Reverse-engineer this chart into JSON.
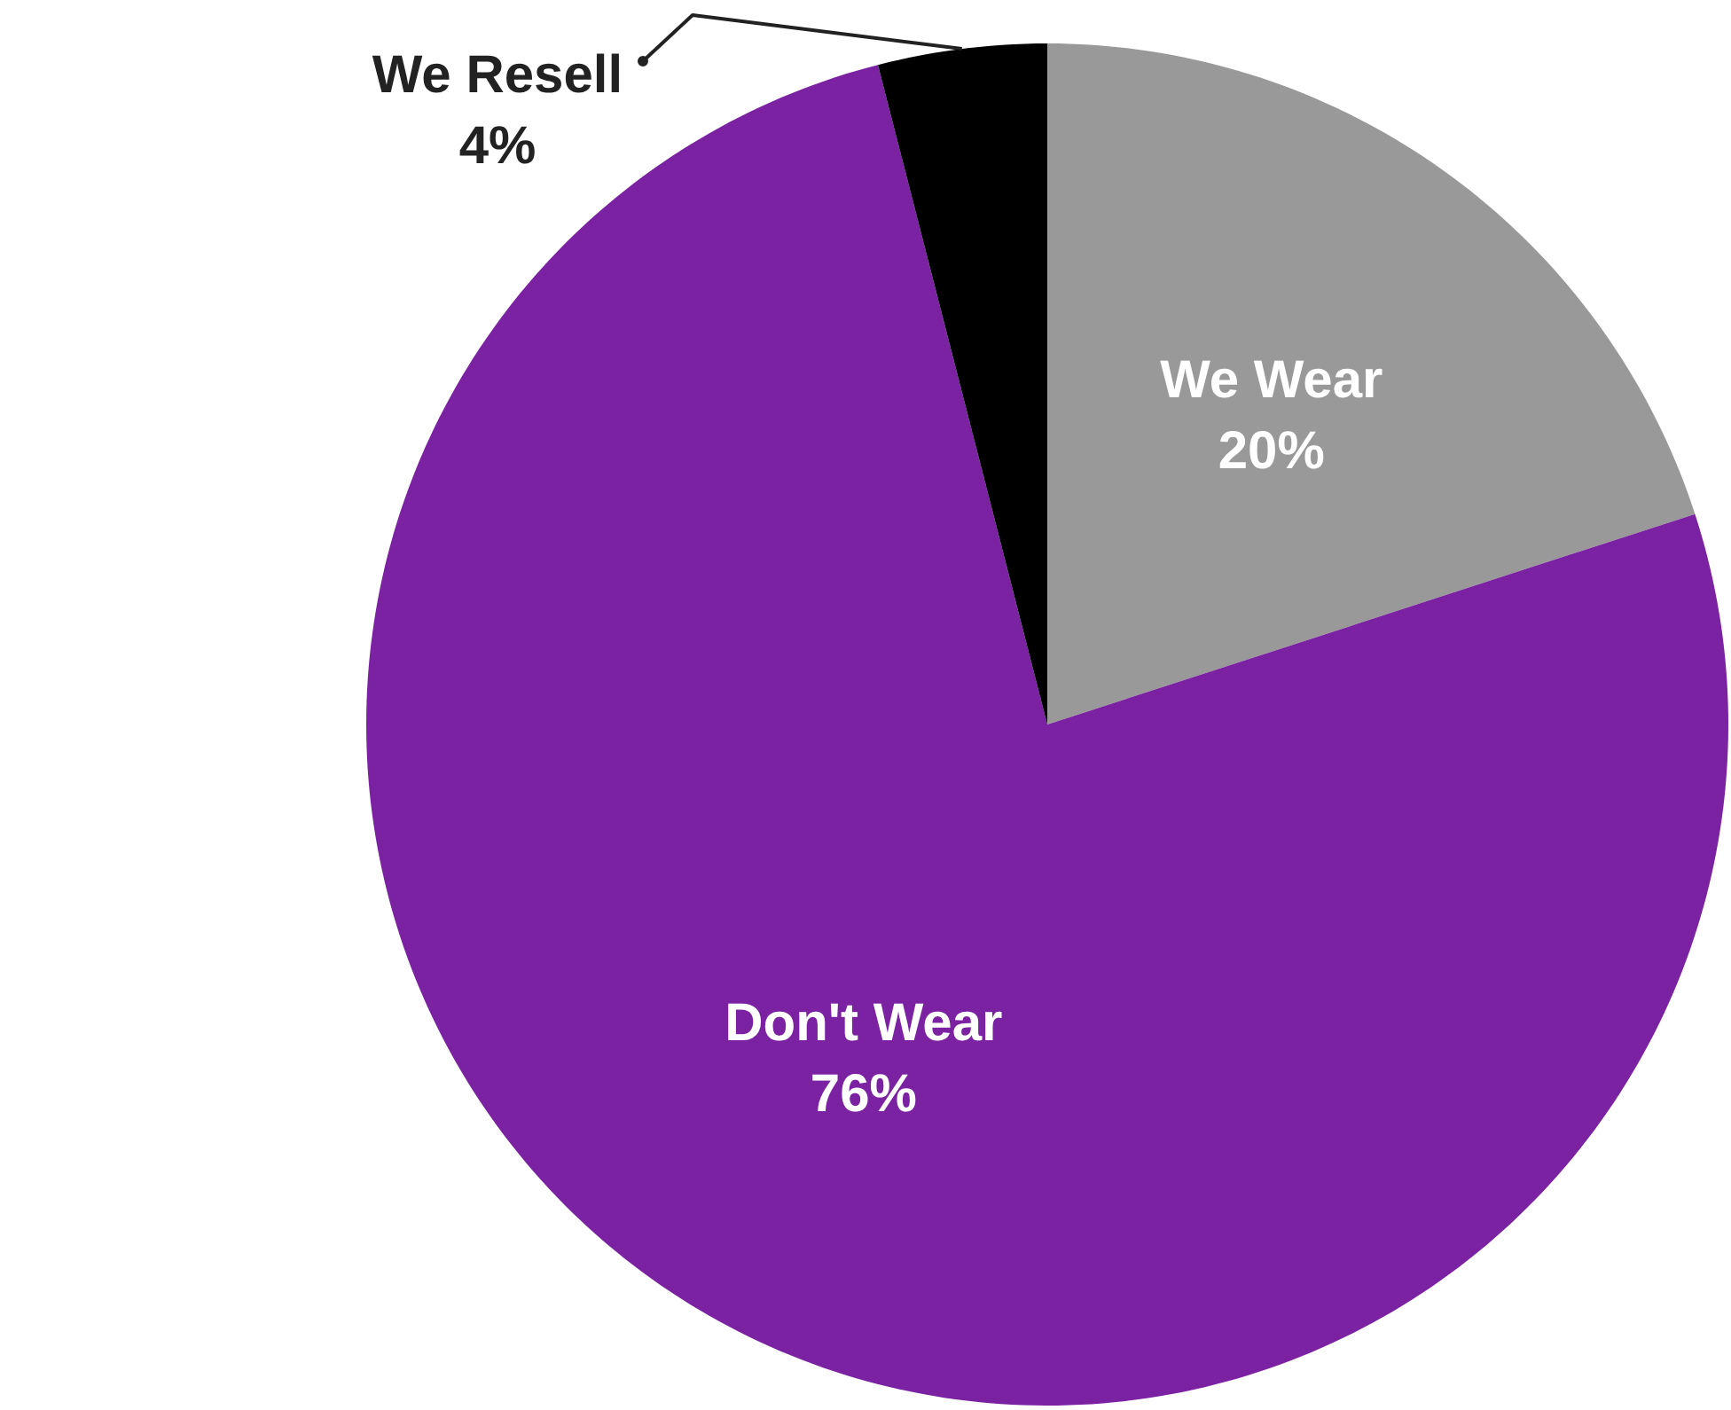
{
  "chart_data": {
    "type": "pie",
    "categories": [
      "We Wear",
      "Don't Wear",
      "We Resell"
    ],
    "values": [
      20,
      76,
      4
    ],
    "colors": [
      "#999999",
      "#7b22a3",
      "#000000"
    ],
    "value_labels": [
      "20%",
      "76%",
      "4%"
    ]
  }
}
